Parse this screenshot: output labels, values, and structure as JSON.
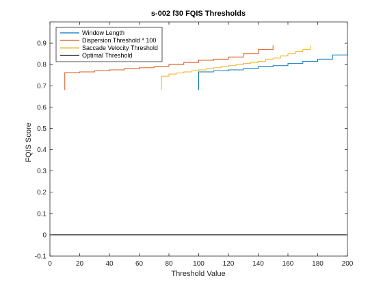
{
  "chart_data": {
    "type": "line",
    "title": "s-002 f30 FQIS Thresholds",
    "xlabel": "Threshold Value",
    "ylabel": "FQIS Score",
    "xlim": [
      0,
      200
    ],
    "ylim": [
      -0.1,
      1.0
    ],
    "xticks": [
      0,
      20,
      40,
      60,
      80,
      100,
      120,
      140,
      160,
      180,
      200
    ],
    "xtick_labels": [
      "0",
      "20",
      "40",
      "60",
      "80",
      "100",
      "120",
      "140",
      "160",
      "180",
      "200"
    ],
    "yticks": [
      -0.1,
      0,
      0.1,
      0.2,
      0.3,
      0.4,
      0.5,
      0.6,
      0.7,
      0.8,
      0.9
    ],
    "ytick_labels": [
      "-0.1",
      "0",
      "0.1",
      "0.2",
      "0.3",
      "0.4",
      "0.5",
      "0.6",
      "0.7",
      "0.8",
      "0.9"
    ],
    "grid": false,
    "legend_position": "top-left",
    "series": [
      {
        "name": "Window Length",
        "color": "#0072BD",
        "style": "stairs",
        "x": [
          100,
          100,
          110,
          120,
          130,
          140,
          150,
          160,
          170,
          180,
          190,
          200,
          200
        ],
        "y": [
          0.68,
          0.765,
          0.77,
          0.775,
          0.78,
          0.79,
          0.795,
          0.805,
          0.815,
          0.825,
          0.845,
          0.86,
          0.89
        ]
      },
      {
        "name": "Dispersion Threshold * 100",
        "color": "#D95319",
        "style": "stairs",
        "x": [
          10,
          10,
          20,
          30,
          40,
          50,
          60,
          70,
          80,
          90,
          100,
          110,
          120,
          130,
          140,
          150,
          150
        ],
        "y": [
          0.68,
          0.762,
          0.765,
          0.77,
          0.775,
          0.78,
          0.785,
          0.79,
          0.8,
          0.81,
          0.82,
          0.825,
          0.835,
          0.85,
          0.87,
          0.875,
          0.89
        ]
      },
      {
        "name": "Saccade Velocity Threshold",
        "color": "#EDB120",
        "style": "stairs",
        "x": [
          75,
          75,
          80,
          85,
          90,
          95,
          100,
          105,
          110,
          115,
          120,
          125,
          130,
          135,
          140,
          145,
          150,
          155,
          160,
          165,
          170,
          175,
          175
        ],
        "y": [
          0.68,
          0.745,
          0.755,
          0.76,
          0.765,
          0.77,
          0.775,
          0.78,
          0.785,
          0.79,
          0.795,
          0.8,
          0.805,
          0.81,
          0.815,
          0.825,
          0.83,
          0.84,
          0.85,
          0.86,
          0.87,
          0.875,
          0.89
        ]
      },
      {
        "name": "Optimal Threshold",
        "color": "#000000",
        "style": "line",
        "x": [
          0,
          200
        ],
        "y": [
          0,
          0
        ]
      }
    ]
  }
}
